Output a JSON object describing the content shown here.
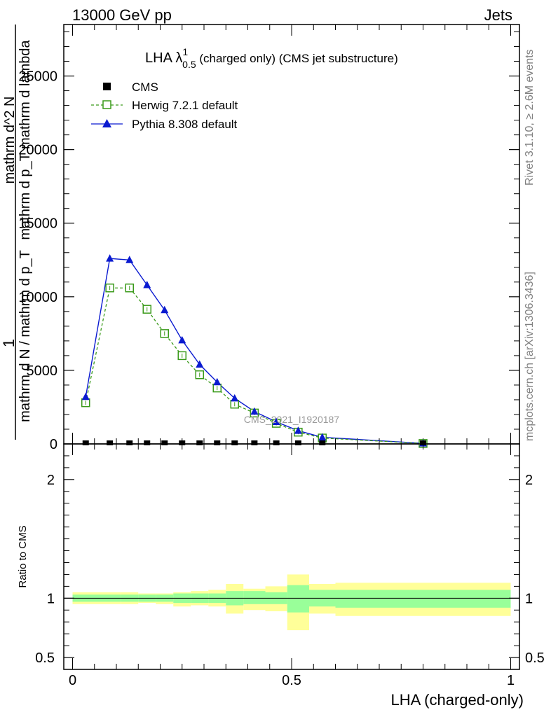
{
  "header": {
    "left": "13000 GeV pp",
    "right": "Jets"
  },
  "plot_title": {
    "main": "LHA λ",
    "sup": "1",
    "sub": "0.5",
    "rest": " (charged only) (CMS jet substructure)"
  },
  "ylabel_main": {
    "one": "1",
    "denominator": "mathrm d N / mathrm d p_T",
    "numerator2": "mathrm d^2 N",
    "denominator2": "mathrm d p_T mathrm d lambda"
  },
  "ylabel_ratio": "Ratio to CMS",
  "xlabel": "LHA (charged-only)",
  "watermark": "CMS_2021_I1920187",
  "side_text": {
    "rivet": "Rivet 3.1.10, ≥ 2.6M events",
    "mcplots": "mcplots.cern.ch [arXiv:1306.3436]"
  },
  "colors": {
    "cms": "#000000",
    "herwig": "#3a9a1a",
    "pythia": "#0a1ad0",
    "band_inner": "#99ff99",
    "band_outer": "#ffff99"
  },
  "chart_data": [
    {
      "type": "line",
      "panel": "main",
      "xlim": [
        -0.02,
        1.02
      ],
      "ylim": [
        0,
        28500
      ],
      "yticks": [
        0,
        5000,
        10000,
        15000,
        20000,
        25000
      ],
      "yticklabels": [
        "0",
        "5000",
        "10000",
        "15000",
        "20000",
        "25000"
      ],
      "xticks": [
        0,
        0.5,
        1
      ],
      "xticklabels": [
        "0",
        "0.5",
        "1"
      ],
      "legend_position": "top-left",
      "series": [
        {
          "name": "CMS",
          "marker": "filled-square",
          "x": [
            0.03,
            0.085,
            0.13,
            0.17,
            0.21,
            0.25,
            0.29,
            0.33,
            0.37,
            0.415,
            0.465,
            0.515,
            0.57,
            0.8
          ],
          "values": [
            0,
            0,
            0,
            0,
            0,
            0,
            0,
            0,
            0,
            0,
            0,
            0,
            0,
            0
          ]
        },
        {
          "name": "Herwig 7.2.1 default",
          "marker": "open-square",
          "x": [
            0.03,
            0.085,
            0.13,
            0.17,
            0.21,
            0.25,
            0.29,
            0.33,
            0.37,
            0.415,
            0.465,
            0.515,
            0.57,
            0.8
          ],
          "values": [
            2800,
            10600,
            10600,
            9150,
            7500,
            6000,
            4700,
            3800,
            2700,
            2100,
            1400,
            800,
            400,
            30
          ]
        },
        {
          "name": "Pythia 8.308 default",
          "marker": "filled-triangle",
          "x": [
            0.03,
            0.085,
            0.13,
            0.17,
            0.21,
            0.25,
            0.29,
            0.33,
            0.37,
            0.415,
            0.465,
            0.515,
            0.57,
            0.8
          ],
          "values": [
            3200,
            12600,
            12500,
            10800,
            9100,
            7050,
            5400,
            4200,
            3100,
            2200,
            1500,
            900,
            450,
            40
          ]
        }
      ]
    },
    {
      "type": "area",
      "panel": "ratio",
      "xlim": [
        -0.02,
        1.02
      ],
      "ylim": [
        0.4,
        2.3
      ],
      "yticks": [
        0.5,
        1,
        2
      ],
      "yticklabels": [
        "0.5",
        "1",
        "2"
      ],
      "reference_line": 1,
      "bins": [
        {
          "x0": 0.0,
          "x1": 0.06,
          "inner": [
            0.97,
            1.03
          ],
          "outer": [
            0.95,
            1.05
          ]
        },
        {
          "x0": 0.06,
          "x1": 0.11,
          "inner": [
            0.97,
            1.03
          ],
          "outer": [
            0.95,
            1.05
          ]
        },
        {
          "x0": 0.11,
          "x1": 0.15,
          "inner": [
            0.97,
            1.03
          ],
          "outer": [
            0.95,
            1.05
          ]
        },
        {
          "x0": 0.15,
          "x1": 0.19,
          "inner": [
            0.97,
            1.03
          ],
          "outer": [
            0.96,
            1.04
          ]
        },
        {
          "x0": 0.19,
          "x1": 0.23,
          "inner": [
            0.97,
            1.03
          ],
          "outer": [
            0.95,
            1.04
          ]
        },
        {
          "x0": 0.23,
          "x1": 0.27,
          "inner": [
            0.96,
            1.04
          ],
          "outer": [
            0.93,
            1.05
          ]
        },
        {
          "x0": 0.27,
          "x1": 0.31,
          "inner": [
            0.96,
            1.04
          ],
          "outer": [
            0.94,
            1.06
          ]
        },
        {
          "x0": 0.31,
          "x1": 0.35,
          "inner": [
            0.96,
            1.04
          ],
          "outer": [
            0.93,
            1.07
          ]
        },
        {
          "x0": 0.35,
          "x1": 0.39,
          "inner": [
            0.94,
            1.06
          ],
          "outer": [
            0.87,
            1.12
          ]
        },
        {
          "x0": 0.39,
          "x1": 0.44,
          "inner": [
            0.95,
            1.06
          ],
          "outer": [
            0.9,
            1.08
          ]
        },
        {
          "x0": 0.44,
          "x1": 0.49,
          "inner": [
            0.95,
            1.05
          ],
          "outer": [
            0.89,
            1.1
          ]
        },
        {
          "x0": 0.49,
          "x1": 0.54,
          "inner": [
            0.88,
            1.11
          ],
          "outer": [
            0.73,
            1.2
          ]
        },
        {
          "x0": 0.54,
          "x1": 0.6,
          "inner": [
            0.93,
            1.07
          ],
          "outer": [
            0.87,
            1.12
          ]
        },
        {
          "x0": 0.6,
          "x1": 1.0,
          "inner": [
            0.92,
            1.07
          ],
          "outer": [
            0.85,
            1.13
          ]
        }
      ]
    }
  ]
}
